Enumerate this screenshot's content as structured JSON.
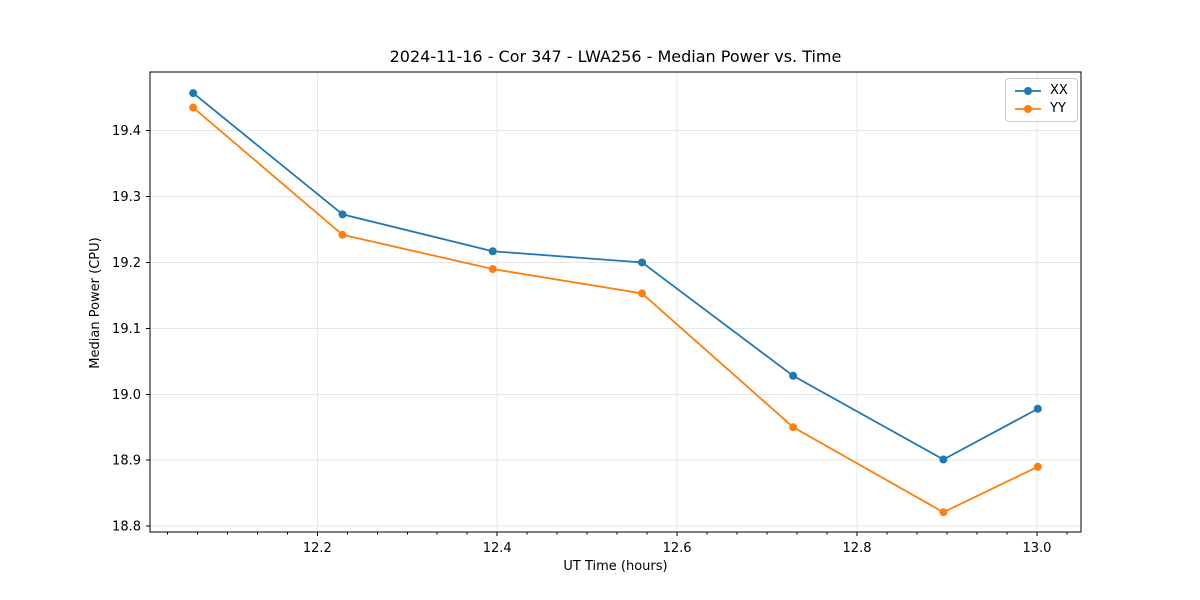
{
  "chart_data": {
    "type": "line",
    "title": "2024-11-16 - Cor 347 - LWA256 - Median Power vs. Time",
    "xlabel": "UT Time (hours)",
    "ylabel": "Median Power (CPU)",
    "x": [
      12.062,
      12.228,
      12.395,
      12.561,
      12.729,
      12.896,
      13.001
    ],
    "series": [
      {
        "name": "XX",
        "color": "#1f77b4",
        "marker": "o",
        "values": [
          19.457,
          19.273,
          19.217,
          19.2,
          19.028,
          18.901,
          18.978
        ]
      },
      {
        "name": "YY",
        "color": "#ff7f0e",
        "marker": "o",
        "values": [
          19.435,
          19.242,
          19.19,
          19.153,
          18.95,
          18.821,
          18.89
        ]
      }
    ],
    "xlim": [
      12.014,
      13.049
    ],
    "ylim": [
      18.791,
      19.489
    ],
    "x_ticks": {
      "values": [
        12.2,
        12.4,
        12.6,
        12.8,
        13.0
      ],
      "labels": [
        "12.2",
        "12.4",
        "12.6",
        "12.8",
        "13.0"
      ]
    },
    "y_ticks": {
      "values": [
        18.8,
        18.9,
        19.0,
        19.1,
        19.2,
        19.3,
        19.4
      ],
      "labels": [
        "18.8",
        "18.9",
        "19.0",
        "19.1",
        "19.2",
        "19.3",
        "19.4"
      ]
    },
    "x_minor_tick_step": 0.0333333,
    "x_minor_divisions": 6,
    "grid": true,
    "grid_color": "#e7e7e7",
    "spine_color": "#000000",
    "legend_position": "upper right"
  }
}
